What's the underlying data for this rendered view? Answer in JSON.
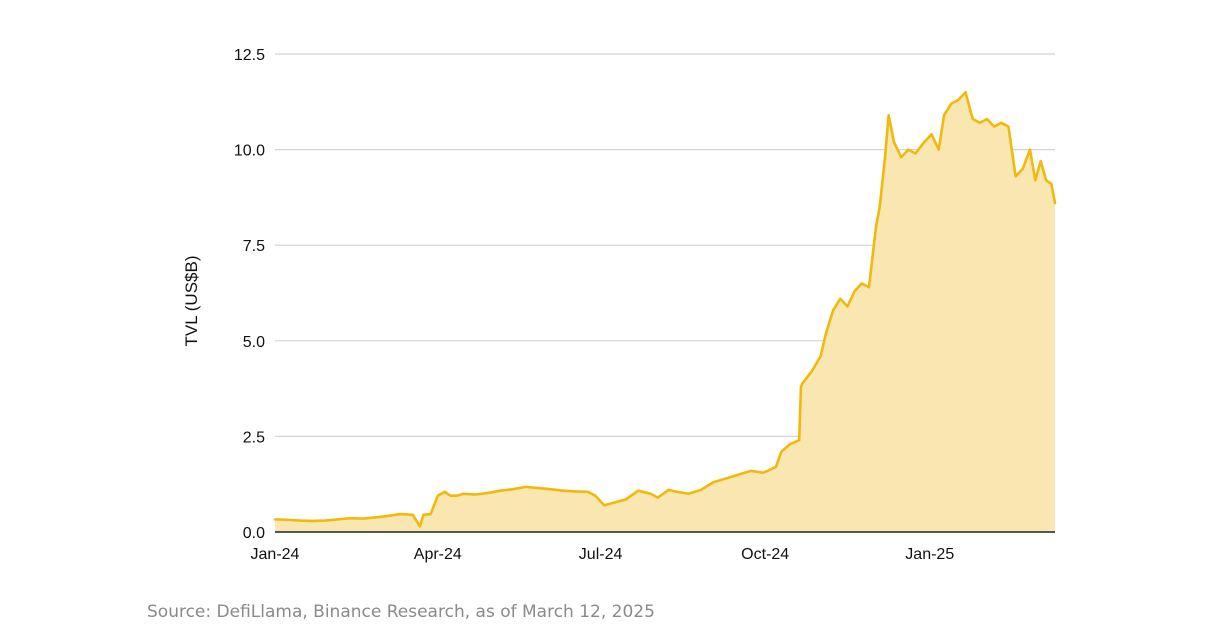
{
  "chart_data": {
    "type": "area",
    "title": "",
    "xlabel": "",
    "ylabel": "TVL (US$B)",
    "ylim": [
      0,
      12.5
    ],
    "xlim": [
      "2024-01-01",
      "2025-03-12"
    ],
    "yticks": [
      "0.0",
      "2.5",
      "5.0",
      "7.5",
      "10.0",
      "12.5"
    ],
    "xticks": [
      {
        "date": "2024-01-01",
        "label": "Jan-24"
      },
      {
        "date": "2024-04-01",
        "label": "Apr-24"
      },
      {
        "date": "2024-07-01",
        "label": "Jul-24"
      },
      {
        "date": "2024-10-01",
        "label": "Oct-24"
      },
      {
        "date": "2025-01-01",
        "label": "Jan-25"
      }
    ],
    "grid": true,
    "legend": "none",
    "colors": {
      "line": "#F0B90B",
      "fill": "#FAE6B1",
      "grid": "#D4D4D4",
      "axis": "#222222"
    },
    "series": [
      {
        "x": [
          "2024-01-01",
          "2024-01-08",
          "2024-01-15",
          "2024-01-22",
          "2024-01-29",
          "2024-02-05",
          "2024-02-12",
          "2024-02-19",
          "2024-02-26",
          "2024-03-04",
          "2024-03-11",
          "2024-03-18",
          "2024-03-22",
          "2024-03-24",
          "2024-03-28",
          "2024-04-01",
          "2024-04-05",
          "2024-04-08",
          "2024-04-12",
          "2024-04-15",
          "2024-04-22",
          "2024-04-29",
          "2024-05-06",
          "2024-05-13",
          "2024-05-20",
          "2024-05-27",
          "2024-06-03",
          "2024-06-10",
          "2024-06-17",
          "2024-06-24",
          "2024-06-28",
          "2024-07-03",
          "2024-07-07",
          "2024-07-15",
          "2024-07-22",
          "2024-07-29",
          "2024-08-02",
          "2024-08-08",
          "2024-08-13",
          "2024-08-19",
          "2024-08-26",
          "2024-09-02",
          "2024-09-09",
          "2024-09-16",
          "2024-09-23",
          "2024-09-30",
          "2024-10-07",
          "2024-10-10",
          "2024-10-15",
          "2024-10-20",
          "2024-10-21",
          "2024-10-22",
          "2024-10-27",
          "2024-11-01",
          "2024-11-04",
          "2024-11-08",
          "2024-11-12",
          "2024-11-16",
          "2024-11-20",
          "2024-11-24",
          "2024-11-28",
          "2024-12-02",
          "2024-12-04",
          "2024-12-07",
          "2024-12-09",
          "2024-12-12",
          "2024-12-16",
          "2024-12-20",
          "2024-12-24",
          "2024-12-29",
          "2025-01-02",
          "2025-01-06",
          "2025-01-09",
          "2025-01-13",
          "2025-01-17",
          "2025-01-21",
          "2025-01-25",
          "2025-01-29",
          "2025-02-02",
          "2025-02-06",
          "2025-02-10",
          "2025-02-14",
          "2025-02-18",
          "2025-02-22",
          "2025-02-26",
          "2025-03-01",
          "2025-03-04",
          "2025-03-07",
          "2025-03-10",
          "2025-03-12"
        ],
        "values": [
          0.33,
          0.32,
          0.3,
          0.29,
          0.3,
          0.33,
          0.36,
          0.35,
          0.38,
          0.42,
          0.47,
          0.45,
          0.15,
          0.45,
          0.47,
          0.95,
          1.05,
          0.95,
          0.95,
          1.0,
          0.98,
          1.02,
          1.08,
          1.12,
          1.18,
          1.15,
          1.12,
          1.08,
          1.06,
          1.05,
          0.95,
          0.7,
          0.75,
          0.85,
          1.08,
          1.0,
          0.9,
          1.1,
          1.05,
          1.0,
          1.1,
          1.3,
          1.4,
          1.5,
          1.6,
          1.55,
          1.7,
          2.1,
          2.3,
          2.4,
          3.8,
          3.9,
          4.2,
          4.6,
          5.2,
          5.8,
          6.1,
          5.9,
          6.3,
          6.5,
          6.4,
          8.0,
          8.5,
          9.8,
          10.9,
          10.2,
          9.8,
          10.0,
          9.9,
          10.2,
          10.4,
          10.0,
          10.9,
          11.2,
          11.3,
          11.5,
          10.8,
          10.7,
          10.8,
          10.6,
          10.7,
          10.6,
          9.3,
          9.5,
          10.0,
          9.2,
          9.7,
          9.2,
          9.1,
          8.6
        ]
      }
    ]
  },
  "source_note": "Source: DefiLlama, Binance Research, as of March 12, 2025"
}
